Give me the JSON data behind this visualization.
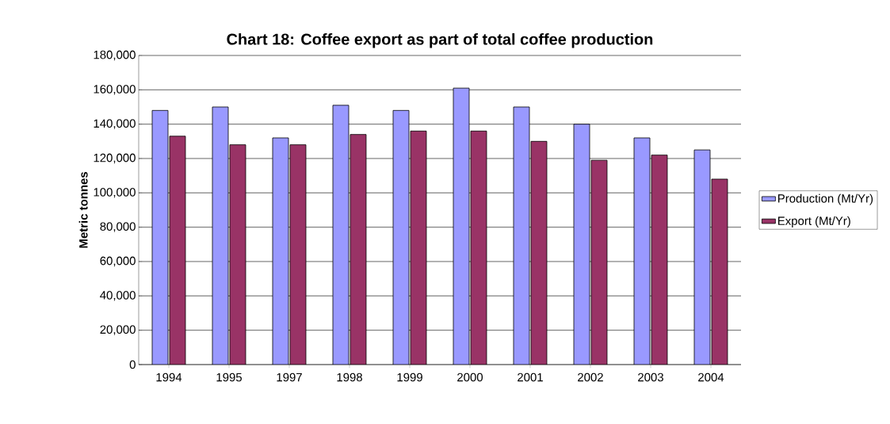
{
  "chart_data": {
    "type": "bar",
    "title": "Chart 18: Coffee export as part of total coffee production",
    "ylabel": "Metric tonnes",
    "categories": [
      "1994",
      "1995",
      "1997",
      "1998",
      "1999",
      "2000",
      "2001",
      "2002",
      "2003",
      "2004"
    ],
    "series": [
      {
        "name": "Production (Mt/Yr)",
        "color": "#9999ff",
        "values": [
          148000,
          150000,
          132000,
          151000,
          148000,
          161000,
          150000,
          140000,
          132000,
          125000
        ]
      },
      {
        "name": "Export (Mt/Yr)",
        "color": "#993366",
        "values": [
          133000,
          128000,
          128000,
          134000,
          136000,
          136000,
          130000,
          119000,
          122000,
          108000
        ]
      }
    ],
    "ylim": [
      0,
      180000
    ],
    "yticks": [
      {
        "value": 0,
        "label": "0"
      },
      {
        "value": 20000,
        "label": "20,000"
      },
      {
        "value": 40000,
        "label": "40,000"
      },
      {
        "value": 60000,
        "label": "60,000"
      },
      {
        "value": 80000,
        "label": "80,000"
      },
      {
        "value": 100000,
        "label": "100,000"
      },
      {
        "value": 120000,
        "label": "120,000"
      },
      {
        "value": 140000,
        "label": "140,000"
      },
      {
        "value": 160000,
        "label": "160,000"
      },
      {
        "value": 180000,
        "label": "180,000"
      }
    ],
    "grid": "y",
    "legend": "right"
  }
}
